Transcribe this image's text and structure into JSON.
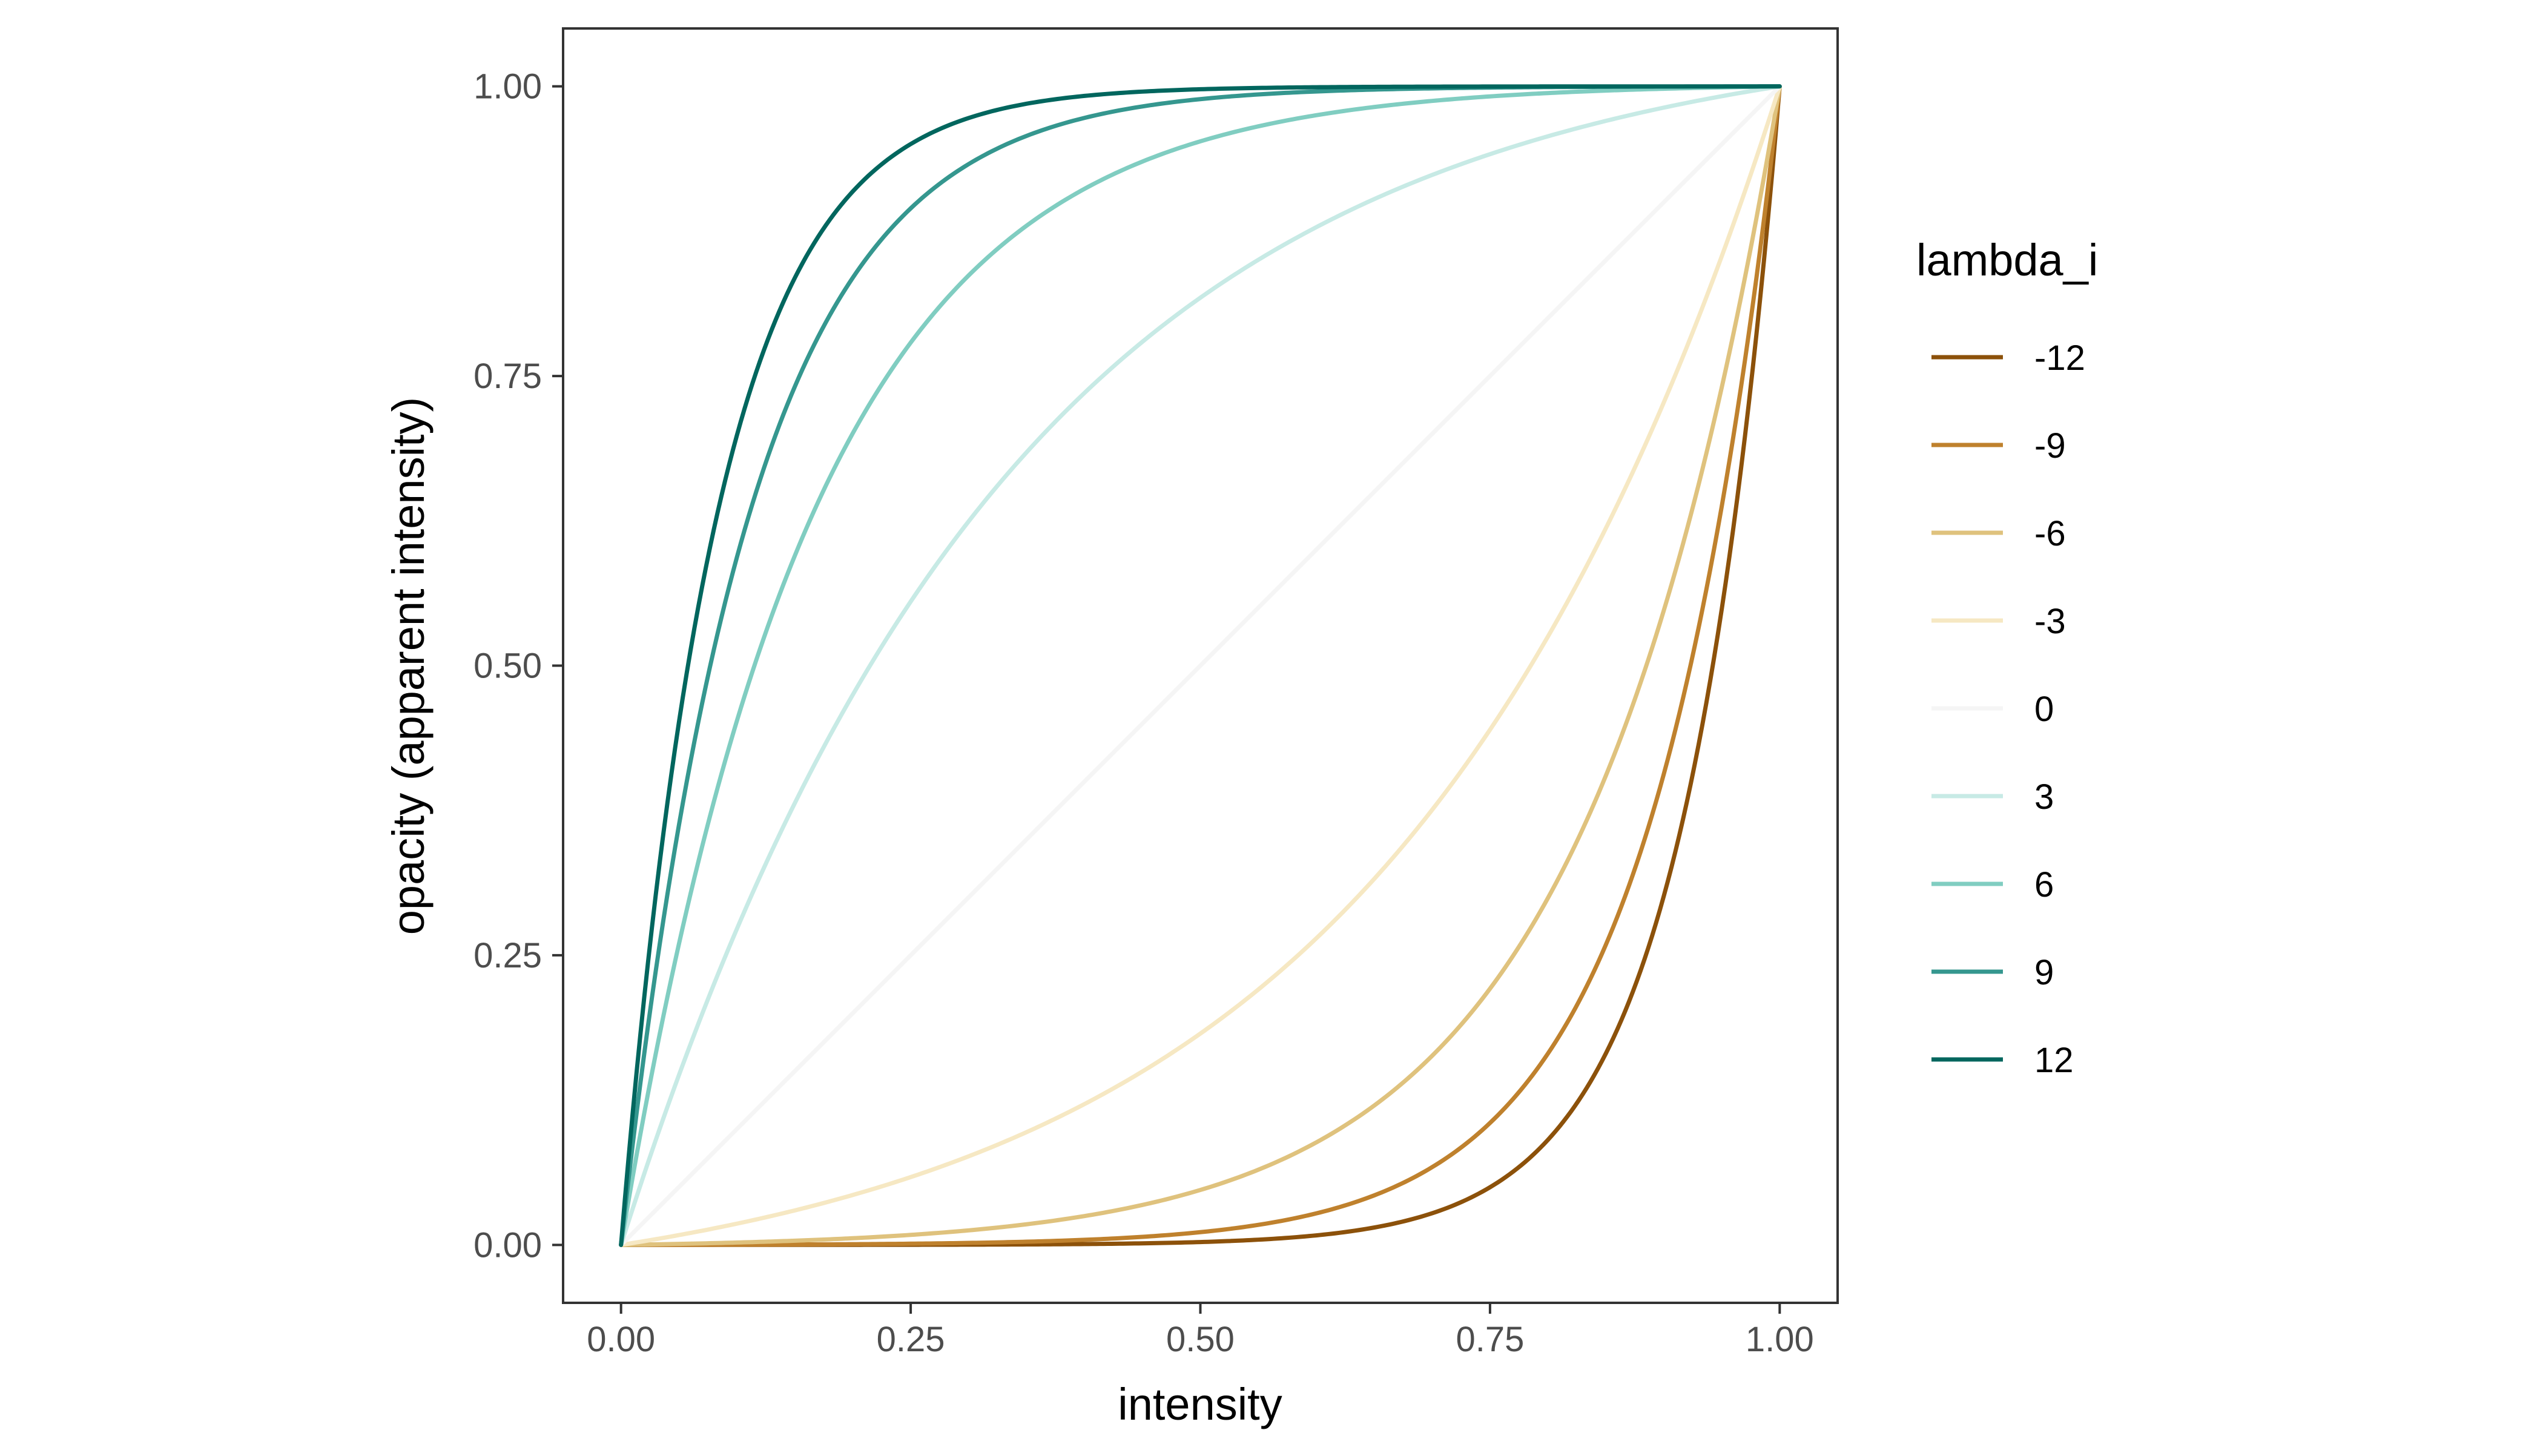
{
  "chart_data": {
    "type": "line",
    "title": "",
    "xlabel": "intensity",
    "ylabel": "opacity (apparent intensity)",
    "xlim": [
      -0.05,
      1.05
    ],
    "ylim": [
      -0.05,
      1.05
    ],
    "x_ticks": [
      "0.00",
      "0.25",
      "0.50",
      "0.75",
      "1.00"
    ],
    "y_ticks": [
      "0.00",
      "0.25",
      "0.50",
      "0.75",
      "1.00"
    ],
    "grid": false,
    "legend": {
      "title": "lambda_i",
      "position": "right"
    },
    "series": [
      {
        "name": "-12",
        "lambda": -12,
        "color": "#8c510a"
      },
      {
        "name": "-9",
        "lambda": -9,
        "color": "#bf812d"
      },
      {
        "name": "-6",
        "lambda": -6,
        "color": "#dfc27d"
      },
      {
        "name": "-3",
        "lambda": -3,
        "color": "#f6e8c3"
      },
      {
        "name": "0",
        "lambda": 0,
        "color": "#f5f5f5"
      },
      {
        "name": "3",
        "lambda": 3,
        "color": "#c7eae5"
      },
      {
        "name": "6",
        "lambda": 6,
        "color": "#80cdc1"
      },
      {
        "name": "9",
        "lambda": 9,
        "color": "#35978f"
      },
      {
        "name": "12",
        "lambda": 12,
        "color": "#01665e"
      }
    ]
  }
}
